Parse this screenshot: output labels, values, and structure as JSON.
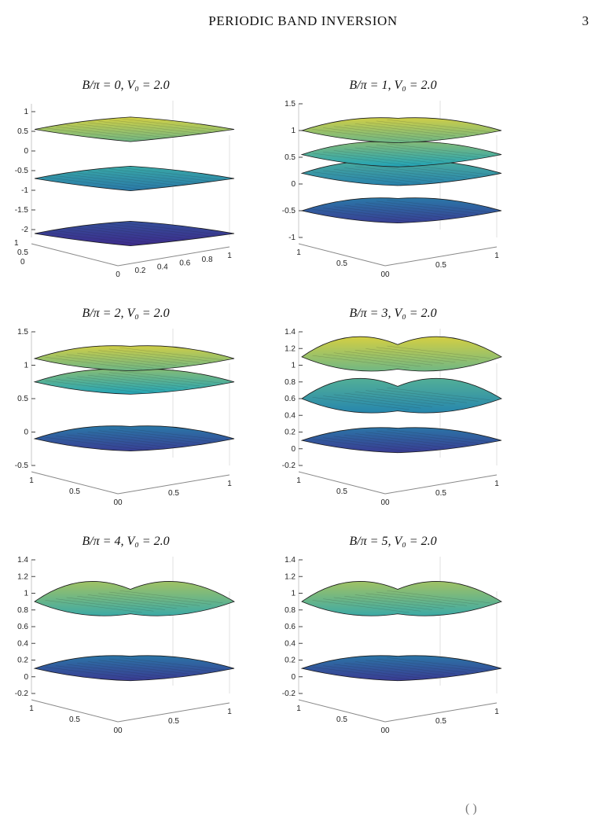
{
  "header": {
    "running_title": "PERIODIC BAND INVERSION",
    "page_number": "3"
  },
  "footer": {
    "partial_text": "( )"
  },
  "colors": {
    "low": "#3d2b8c",
    "mid": "#20a3b8",
    "high": "#f0d630",
    "mesh": "#1b1b1b"
  },
  "chart_data": [
    {
      "type": "surface",
      "title": "B/π = 0, V₀ = 2.0",
      "B_over_pi": 0,
      "V0": 2.0,
      "zticks": [
        "1",
        "0.5",
        "0",
        "-0.5",
        "-1",
        "-1.5",
        "-2"
      ],
      "zlim": [
        -2.2,
        1.2
      ],
      "xticks": [
        "0",
        "0.2",
        "0.4",
        "0.6",
        "0.8",
        "1"
      ],
      "yticks": [
        "1",
        "0.5",
        "0"
      ],
      "bands": [
        {
          "name": "",
          "level": 0.55
        },
        {
          "name": "",
          "level": -0.7
        },
        {
          "name": "",
          "level": -2.1
        }
      ]
    },
    {
      "type": "surface",
      "title": "B/π = 1, V₀ = 2.0",
      "B_over_pi": 1,
      "V0": 2.0,
      "zticks": [
        "1.5",
        "1",
        "0.5",
        "0",
        "-0.5",
        "-1"
      ],
      "zlim": [
        -1,
        1.5
      ],
      "xticks": [
        "1",
        "0.5",
        "00",
        "0.5",
        "1"
      ],
      "yticks": [],
      "bands": [
        {
          "name": "",
          "level": 1.0
        },
        {
          "name": "",
          "level": 0.55
        },
        {
          "name": "",
          "level": 0.2
        },
        {
          "name": "",
          "level": -0.5
        }
      ]
    },
    {
      "type": "surface",
      "title": "B/π = 2, V₀ = 2.0",
      "B_over_pi": 2,
      "V0": 2.0,
      "zticks": [
        "1.5",
        "1",
        "0.5",
        "0",
        "-0.5"
      ],
      "zlim": [
        -0.5,
        1.5
      ],
      "xticks": [
        "1",
        "0.5",
        "00",
        "0.5",
        "1"
      ],
      "yticks": [],
      "bands": [
        {
          "name": "",
          "level": 1.1
        },
        {
          "name": "",
          "level": 0.75
        },
        {
          "name": "",
          "level": -0.1
        }
      ]
    },
    {
      "type": "surface",
      "title": "B/π = 3, V₀ = 2.0",
      "B_over_pi": 3,
      "V0": 2.0,
      "zticks": [
        "1.4",
        "1.2",
        "1",
        "0.8",
        "0.6",
        "0.4",
        "0.2",
        "0",
        "-0.2"
      ],
      "zlim": [
        -0.2,
        1.4
      ],
      "xticks": [
        "1",
        "0.5",
        "00",
        "0.5",
        "1"
      ],
      "yticks": [],
      "bands": [
        {
          "name": "",
          "level": 1.1
        },
        {
          "name": "",
          "level": 0.6
        },
        {
          "name": "",
          "level": 0.1
        }
      ]
    },
    {
      "type": "surface",
      "title": "B/π = 4, V₀ = 2.0",
      "B_over_pi": 4,
      "V0": 2.0,
      "zticks": [
        "1.4",
        "1.2",
        "1",
        "0.8",
        "0.6",
        "0.4",
        "0.2",
        "0",
        "-0.2"
      ],
      "zlim": [
        -0.2,
        1.4
      ],
      "xticks": [
        "1",
        "0.5",
        "00",
        "0.5",
        "1"
      ],
      "yticks": [],
      "bands": [
        {
          "name": "",
          "level": 0.9
        },
        {
          "name": "",
          "level": 0.1
        }
      ]
    },
    {
      "type": "surface",
      "title": "B/π = 5, V₀ = 2.0",
      "B_over_pi": 5,
      "V0": 2.0,
      "zticks": [
        "1.4",
        "1.2",
        "1",
        "0.8",
        "0.6",
        "0.4",
        "0.2",
        "0",
        "-0.2"
      ],
      "zlim": [
        -0.2,
        1.4
      ],
      "xticks": [
        "1",
        "0.5",
        "00",
        "0.5",
        "1"
      ],
      "yticks": [],
      "bands": [
        {
          "name": "",
          "level": 0.9
        },
        {
          "name": "",
          "level": 0.1
        }
      ]
    }
  ]
}
